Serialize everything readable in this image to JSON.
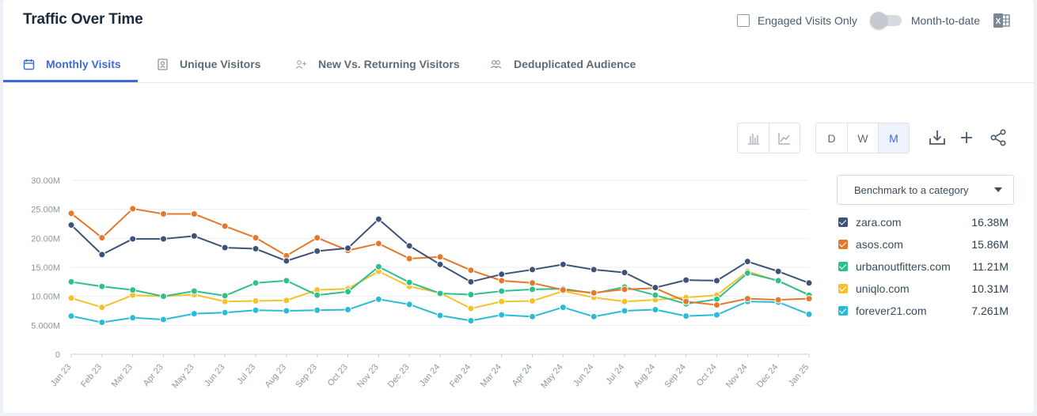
{
  "header": {
    "title": "Traffic Over Time",
    "engaged_label": "Engaged Visits Only",
    "mtd_label": "Month-to-date"
  },
  "tabs": [
    {
      "label": "Monthly Visits",
      "icon": "calendar-icon",
      "active": true
    },
    {
      "label": "Unique Visitors",
      "icon": "id-badge-icon",
      "active": false
    },
    {
      "label": "New Vs. Returning Visitors",
      "icon": "add-user-icon",
      "active": false
    },
    {
      "label": "Deduplicated Audience",
      "icon": "people-icon",
      "active": false
    }
  ],
  "granularity": {
    "options": [
      "D",
      "W",
      "M"
    ],
    "selected": "M"
  },
  "benchmark": {
    "label": "Benchmark to a category"
  },
  "chart_data": {
    "type": "line",
    "x": [
      "Jan 23",
      "Feb 23",
      "Mar 23",
      "Apr 23",
      "May 23",
      "Jun 23",
      "Jul 23",
      "Aug 23",
      "Sep 23",
      "Oct 23",
      "Nov 23",
      "Dec 23",
      "Jan 24",
      "Feb 24",
      "Mar 24",
      "Apr 24",
      "May 24",
      "Jun 24",
      "Jul 24",
      "Aug 24",
      "Sep 24",
      "Oct 24",
      "Nov 24",
      "Dec 24",
      "Jan 25"
    ],
    "y_ticks": [
      "0",
      "5.000M",
      "10.00M",
      "15.00M",
      "20.00M",
      "25.00M",
      "30.00M"
    ],
    "ylim": [
      0,
      30
    ],
    "grid": true,
    "legend_position": "right",
    "series": [
      {
        "name": "zara.com",
        "total": "16.38M",
        "color": "#3e5279",
        "values": [
          22.3,
          17.2,
          19.9,
          19.9,
          20.4,
          18.4,
          18.2,
          16.1,
          17.8,
          18.3,
          23.3,
          18.7,
          15.5,
          12.5,
          13.8,
          14.6,
          15.5,
          14.6,
          14.1,
          11.5,
          12.8,
          12.7,
          16.0,
          14.3,
          12.3
        ]
      },
      {
        "name": "asos.com",
        "total": "15.86M",
        "color": "#e6782b",
        "values": [
          24.3,
          20.1,
          25.1,
          24.2,
          24.2,
          22.1,
          20.1,
          17.0,
          20.1,
          17.9,
          19.1,
          16.5,
          16.8,
          14.5,
          12.7,
          12.3,
          11.1,
          10.6,
          11.2,
          11.4,
          9.1,
          8.5,
          9.6,
          9.4,
          9.6
        ]
      },
      {
        "name": "urbanoutfitters.com",
        "total": "11.21M",
        "color": "#2dc08d",
        "values": [
          12.5,
          11.7,
          11.1,
          10.0,
          10.9,
          10.1,
          12.3,
          12.7,
          10.2,
          10.8,
          15.1,
          12.4,
          10.5,
          10.3,
          10.9,
          11.2,
          11.3,
          10.5,
          11.6,
          10.2,
          8.7,
          9.5,
          14.0,
          12.7,
          10.2
        ]
      },
      {
        "name": "uniqlo.com",
        "total": "10.31M",
        "color": "#f6c12b",
        "values": [
          9.7,
          8.1,
          10.2,
          10.0,
          10.3,
          9.1,
          9.2,
          9.3,
          11.1,
          11.3,
          14.3,
          11.7,
          10.6,
          7.9,
          9.1,
          9.2,
          10.9,
          9.8,
          9.1,
          9.4,
          9.8,
          10.2,
          14.3,
          12.6,
          10.3
        ]
      },
      {
        "name": "forever21.com",
        "total": "7.261M",
        "color": "#28bcd6",
        "values": [
          6.6,
          5.5,
          6.3,
          6.0,
          7.0,
          7.2,
          7.6,
          7.5,
          7.6,
          7.7,
          9.5,
          8.6,
          6.7,
          5.8,
          6.8,
          6.5,
          8.1,
          6.5,
          7.5,
          7.7,
          6.6,
          6.8,
          9.1,
          9.0,
          6.9
        ]
      }
    ]
  }
}
